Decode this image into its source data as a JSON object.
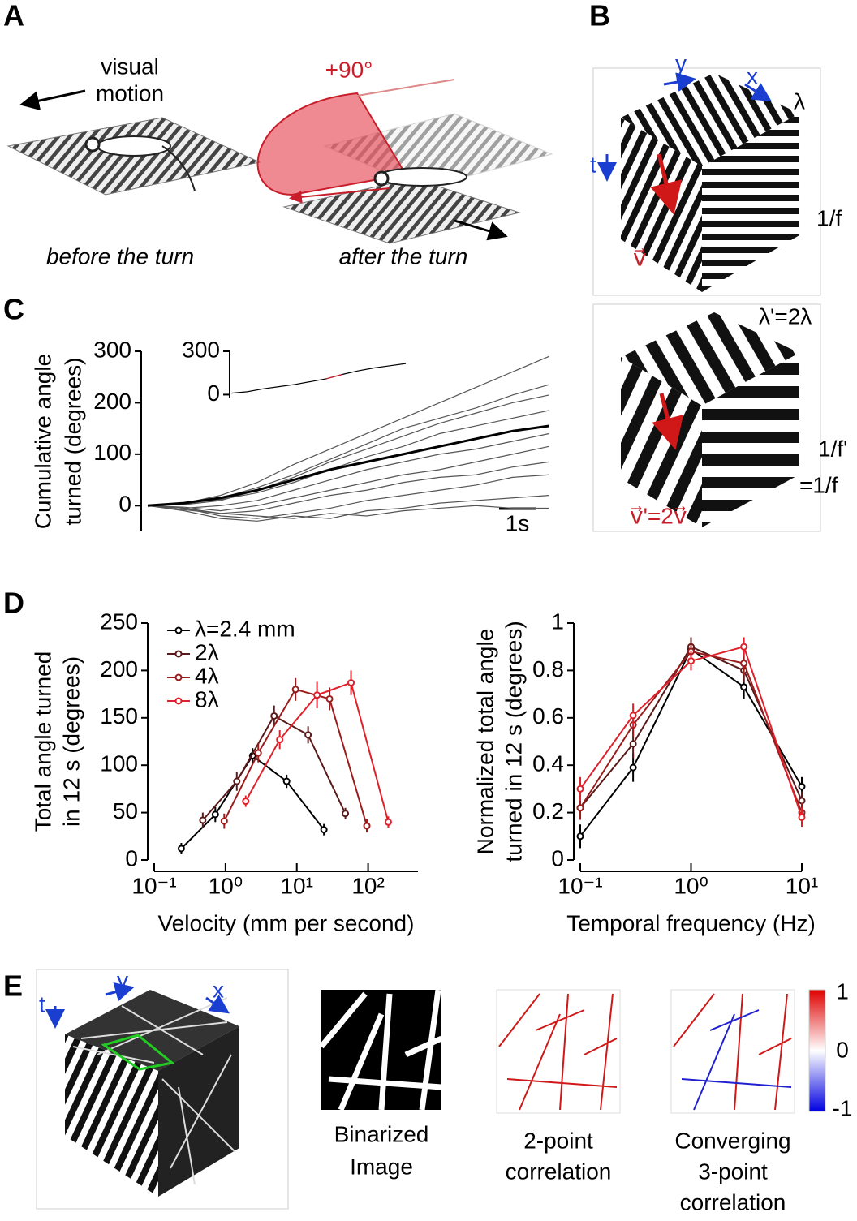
{
  "panels": {
    "A": {
      "label": "A",
      "visual_motion": [
        "visual",
        "motion"
      ],
      "angle": "+90°",
      "before": "before the turn",
      "after": "after the turn"
    },
    "B": {
      "label": "B",
      "y": "y",
      "x": "x",
      "lambda": "λ",
      "t": "t",
      "period": "1/f",
      "v": "v⃗",
      "lambda2": "λ'=2λ",
      "period2": [
        "1/f'",
        "=1/f"
      ],
      "v2": "v⃗'=2v⃗"
    },
    "C": {
      "label": "C"
    },
    "D": {
      "label": "D"
    },
    "E": {
      "label": "E",
      "y": "y",
      "x": "x",
      "t": "t",
      "captions": [
        [
          "Binarized",
          "Image"
        ],
        [
          "2-point",
          "correlation"
        ],
        [
          "Converging",
          "3-point",
          "correlation"
        ]
      ],
      "colorbar_ticks": [
        1,
        0,
        -1
      ]
    }
  },
  "chart_data": [
    {
      "type": "line",
      "ylabel": [
        "Cumulative angle",
        "turned (degrees)"
      ],
      "x": [
        0,
        1,
        2,
        3,
        4,
        5,
        6,
        7,
        8,
        9,
        10,
        11
      ],
      "xlim": [
        0,
        11.3
      ],
      "ylim": [
        -50,
        300
      ],
      "yticks": [
        0,
        100,
        200,
        300
      ],
      "scale_bar": {
        "value": 1,
        "label": "1s"
      },
      "series": [
        {
          "color": "#555555",
          "values": [
            0,
            5,
            20,
            45,
            80,
            110,
            140,
            170,
            200,
            230,
            260,
            290
          ]
        },
        {
          "color": "#555555",
          "values": [
            0,
            3,
            15,
            35,
            60,
            90,
            120,
            150,
            170,
            190,
            215,
            235
          ]
        },
        {
          "color": "#555555",
          "values": [
            0,
            2,
            10,
            30,
            55,
            85,
            110,
            135,
            160,
            180,
            200,
            215
          ]
        },
        {
          "color": "#555555",
          "values": [
            0,
            4,
            12,
            25,
            45,
            70,
            95,
            115,
            140,
            155,
            170,
            185
          ]
        },
        {
          "color": "#555555",
          "values": [
            0,
            -5,
            0,
            10,
            30,
            50,
            70,
            85,
            100,
            110,
            125,
            140
          ]
        },
        {
          "color": "#555555",
          "values": [
            0,
            -3,
            -10,
            0,
            15,
            30,
            45,
            60,
            70,
            85,
            100,
            115
          ]
        },
        {
          "color": "#555555",
          "values": [
            0,
            -8,
            -15,
            -10,
            5,
            20,
            30,
            45,
            55,
            60,
            75,
            85
          ]
        },
        {
          "color": "#555555",
          "values": [
            0,
            -5,
            -20,
            -25,
            -15,
            -5,
            10,
            20,
            30,
            40,
            55,
            60
          ]
        },
        {
          "color": "#555555",
          "values": [
            0,
            -10,
            -25,
            -30,
            -20,
            -25,
            -10,
            -5,
            5,
            10,
            15,
            20
          ]
        },
        {
          "color": "#555555",
          "values": [
            0,
            -5,
            -15,
            -20,
            -25,
            -15,
            -20,
            -10,
            -5,
            0,
            -5,
            -5
          ]
        },
        {
          "color": "#000000",
          "width": 3,
          "values": [
            0,
            5,
            15,
            30,
            50,
            70,
            85,
            100,
            115,
            130,
            145,
            155
          ]
        }
      ]
    },
    {
      "type": "line",
      "x": [
        0,
        1,
        2,
        3,
        4,
        5,
        6,
        7,
        8,
        9,
        10,
        11
      ],
      "xlim": [
        0,
        11
      ],
      "ylim": [
        -20,
        300
      ],
      "yticks": [
        0,
        300
      ],
      "series": [
        {
          "color": "#000000",
          "values": [
            10,
            20,
            40,
            55,
            70,
            90,
            110,
            140,
            165,
            185,
            200,
            215
          ]
        },
        {
          "color": "#d0202a",
          "values": [
            null,
            null,
            null,
            null,
            null,
            null,
            110,
            140,
            null,
            null,
            null,
            null
          ]
        }
      ]
    },
    {
      "type": "line",
      "xlog": true,
      "xlabel": "Velocity (mm per second)",
      "ylabel": [
        "Total angle turned",
        "in 12 s (degrees)"
      ],
      "xlim": [
        0.1,
        500
      ],
      "xticks": [
        {
          "value": 0.1,
          "label": "10⁻¹"
        },
        {
          "value": 1,
          "label": "10⁰"
        },
        {
          "value": 10,
          "label": "10¹"
        },
        {
          "value": 100,
          "label": "10²"
        }
      ],
      "ylim": [
        0,
        250
      ],
      "yticks": [
        0,
        50,
        100,
        150,
        200,
        250
      ],
      "series": [
        {
          "name": "λ=2.4 mm",
          "color": "#000000",
          "x": [
            0.24,
            0.72,
            2.4,
            7.2,
            24
          ],
          "values": [
            12,
            48,
            110,
            83,
            32
          ],
          "errors": [
            6,
            8,
            8,
            7,
            6
          ]
        },
        {
          "name": "2λ",
          "color": "#5a1a1a",
          "x": [
            0.48,
            1.44,
            4.8,
            14.4,
            48
          ],
          "values": [
            42,
            83,
            152,
            132,
            49
          ],
          "errors": [
            8,
            10,
            11,
            9,
            6
          ]
        },
        {
          "name": "4λ",
          "color": "#9b1c1c",
          "x": [
            0.96,
            2.88,
            9.6,
            28.8,
            96
          ],
          "values": [
            41,
            113,
            180,
            170,
            36
          ],
          "errors": [
            8,
            10,
            12,
            12,
            7
          ]
        },
        {
          "name": "8λ",
          "color": "#e0202a",
          "x": [
            1.92,
            5.76,
            19.2,
            57.6,
            192
          ],
          "values": [
            62,
            127,
            174,
            187,
            40
          ],
          "errors": [
            6,
            10,
            14,
            13,
            6
          ]
        }
      ]
    },
    {
      "type": "line",
      "xlog": true,
      "xlabel": "Temporal frequency (Hz)",
      "ylabel": [
        "Normalized total angle",
        "turned in 12 s (degrees)"
      ],
      "x": [
        0.1,
        0.3,
        1,
        3,
        10
      ],
      "xlim": [
        0.1,
        10
      ],
      "xticks": [
        {
          "value": 0.1,
          "label": "10⁻¹"
        },
        {
          "value": 1,
          "label": "10⁰"
        },
        {
          "value": 10,
          "label": "10¹"
        }
      ],
      "ylim": [
        0,
        1
      ],
      "yticks": [
        0,
        0.2,
        0.4,
        0.6,
        0.8,
        1
      ],
      "series": [
        {
          "color": "#000000",
          "values": [
            0.1,
            0.39,
            0.89,
            0.73,
            0.31
          ],
          "errors": [
            0.05,
            0.06,
            0.04,
            0.05,
            0.04
          ]
        },
        {
          "color": "#5a1a1a",
          "values": [
            0.22,
            0.49,
            0.9,
            0.8,
            0.25
          ],
          "errors": [
            0.05,
            0.06,
            0.04,
            0.05,
            0.04
          ]
        },
        {
          "color": "#9b1c1c",
          "values": [
            0.22,
            0.57,
            0.88,
            0.83,
            0.2
          ],
          "errors": [
            0.05,
            0.05,
            0.04,
            0.05,
            0.04
          ]
        },
        {
          "color": "#e0202a",
          "values": [
            0.3,
            0.61,
            0.84,
            0.9,
            0.18
          ],
          "errors": [
            0.05,
            0.05,
            0.04,
            0.04,
            0.04
          ]
        }
      ]
    }
  ]
}
